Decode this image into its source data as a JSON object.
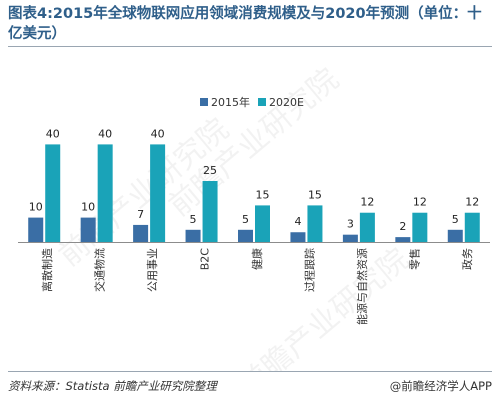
{
  "header": {
    "title": "图表4:2015年全球物联网应用领域消费规模及与2020年预测（单位：十亿美元）"
  },
  "footer": {
    "source": "资料来源：Statista  前瞻产业研究院整理",
    "brand": "@前瞻经济学人APP"
  },
  "watermark": {
    "text": "前瞻产业研究院"
  },
  "colors": {
    "series_2015": "#3a6ea5",
    "series_2020": "#1aa3b8",
    "title": "#2f5f8a"
  },
  "chart_data": {
    "type": "bar",
    "title": "图表4:2015年全球物联网应用领域消费规模及与2020年预测（单位：十亿美元）",
    "categories": [
      "离散制造",
      "交通物流",
      "公用事业",
      "B2C",
      "健康",
      "过程跟踪",
      "能源与自然资源",
      "零售",
      "政务"
    ],
    "series": [
      {
        "name": "2015年",
        "values": [
          10,
          10,
          7,
          5,
          5,
          4,
          3,
          2,
          5
        ]
      },
      {
        "name": "2020E",
        "values": [
          40,
          40,
          40,
          25,
          15,
          15,
          12,
          12,
          12
        ]
      }
    ],
    "ylim": [
      0,
      50
    ],
    "grid": false,
    "legend": "top-center"
  }
}
